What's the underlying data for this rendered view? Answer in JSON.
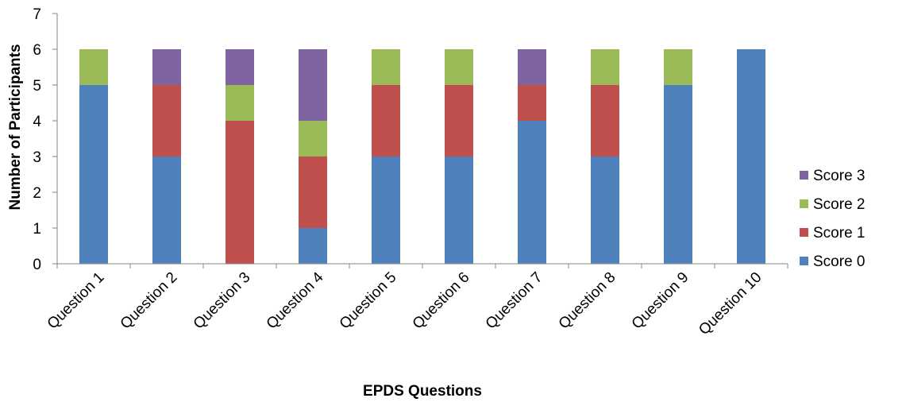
{
  "chart_data": {
    "type": "bar",
    "stacked": true,
    "title": "",
    "xlabel": "EPDS Questions",
    "ylabel": "Number of Participants",
    "ylim": [
      0,
      7
    ],
    "yticks": [
      "0",
      "1",
      "2",
      "3",
      "4",
      "5",
      "6",
      "7"
    ],
    "grid": false,
    "legend_position": "right",
    "categories": [
      "Question 1",
      "Question 2",
      "Question 3",
      "Question 4",
      "Question 5",
      "Question 6",
      "Question 7",
      "Question 8",
      "Question 9",
      "Question 10"
    ],
    "series": [
      {
        "name": "Score 0",
        "color": "#4F81BD",
        "values": [
          5,
          3,
          0,
          1,
          3,
          3,
          4,
          3,
          5,
          6
        ]
      },
      {
        "name": "Score 1",
        "color": "#C0504D",
        "values": [
          0,
          2,
          4,
          2,
          2,
          2,
          1,
          2,
          0,
          0
        ]
      },
      {
        "name": "Score 2",
        "color": "#9BBB59",
        "values": [
          1,
          0,
          1,
          1,
          1,
          1,
          0,
          1,
          1,
          0
        ]
      },
      {
        "name": "Score 3",
        "color": "#8064A2",
        "values": [
          0,
          1,
          1,
          2,
          0,
          0,
          1,
          0,
          0,
          0
        ]
      }
    ]
  }
}
